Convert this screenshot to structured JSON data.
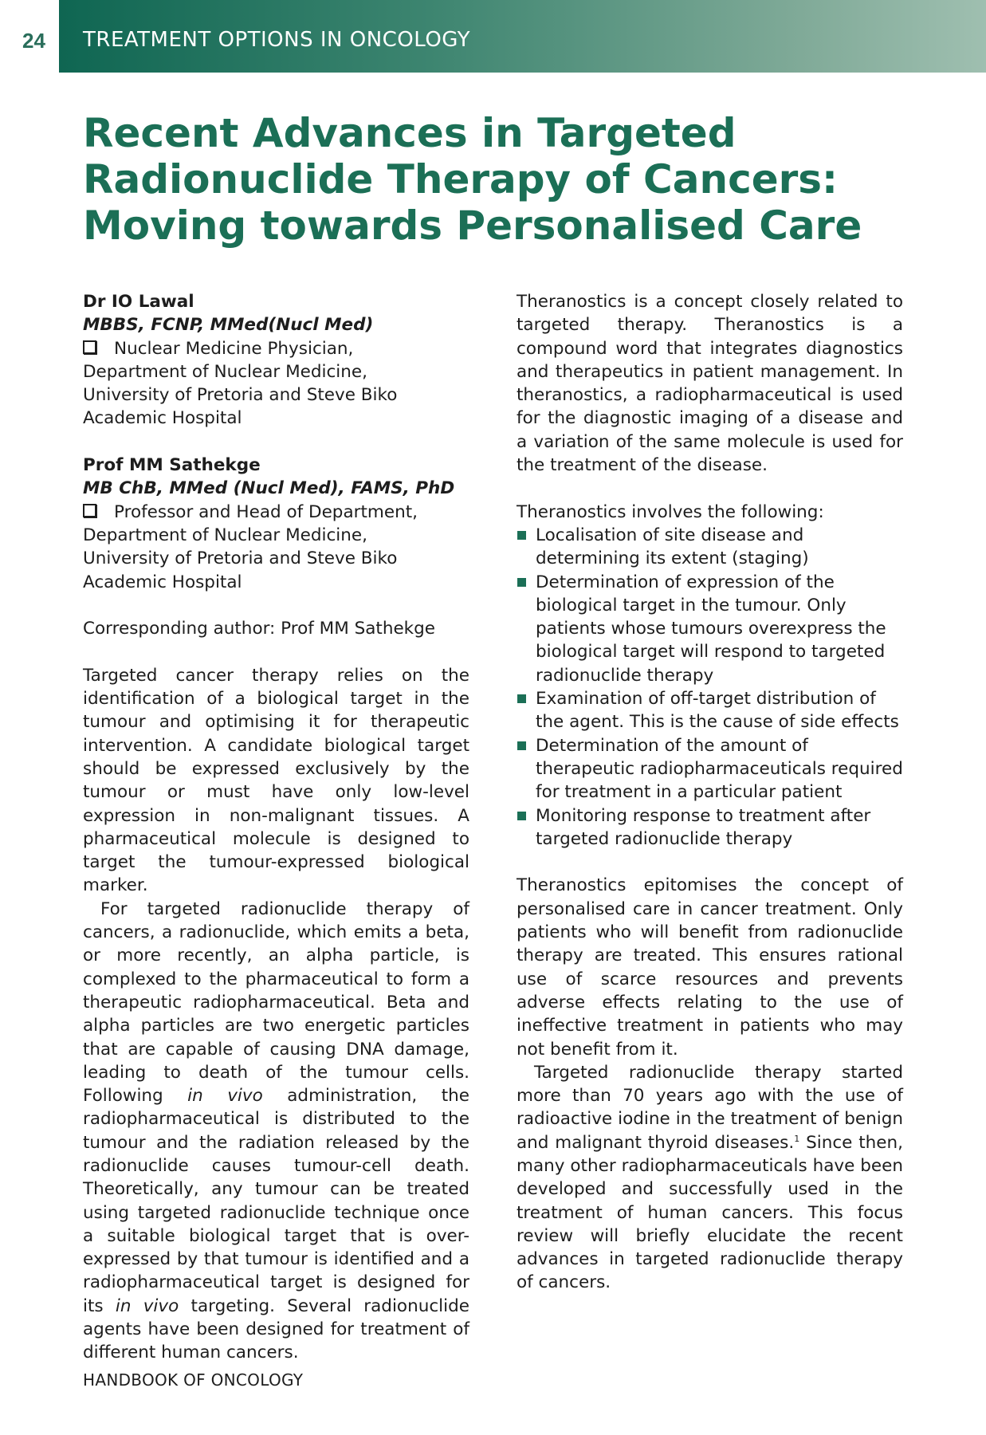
{
  "header": {
    "page_number": "24",
    "section_title": "TREATMENT OPTIONS IN ONCOLOGY"
  },
  "article": {
    "title_lines": [
      "Recent Advances in Targeted",
      "Radionuclide Therapy of Cancers:",
      "Moving towards Personalised Care"
    ]
  },
  "authors": [
    {
      "name": "Dr IO Lawal",
      "qualifications": "MBBS, FCNP, MMed(Nucl Med)",
      "affiliation_lines": [
        "Nuclear Medicine Physician,",
        "Department of Nuclear Medicine,",
        "University of Pretoria and Steve Biko",
        "Academic Hospital"
      ]
    },
    {
      "name": "Prof MM Sathekge",
      "qualifications": "MB ChB, MMed (Nucl Med), FAMS, PhD",
      "affiliation_lines": [
        "Professor and Head of Department,",
        "Department of Nuclear Medicine,",
        "University of Pretoria and Steve Biko",
        "Academic Hospital"
      ]
    }
  ],
  "corresponding_author": "Corresponding author: Prof MM Sathekge",
  "left_column": {
    "para1": "Targeted cancer therapy relies on the identification of a biological target in the tumour and optimising it for therapeutic intervention. A candidate biological target should be expressed exclusively by the tumour or must have only low-level expression in non-malignant tissues. A pharmaceutical molecule is designed to target the tumour-expressed biological marker.",
    "para2_a": "For targeted radionuclide therapy of cancers, a radionuclide, which emits a beta, or more recently, an alpha particle, is complexed to the pharmaceutical to form a therapeutic radiopharmaceutical. Beta and alpha particles are two energetic particles that are capable of causing DNA damage, leading to death of the tumour cells. Following ",
    "para2_em1": "in vivo",
    "para2_b": " administration, the radiopharmaceutical is distributed to the tumour and the radiation released by the radionuclide causes tumour-cell death. Theoretically, any tumour can be treated using targeted radionuclide technique once a suitable biological target that is over-expressed by that tumour is identified and a radiopharmaceutical target is designed for its ",
    "para2_em2": "in vivo",
    "para2_c": " targeting. Several radionuclide agents have been designed for treatment of different human cancers."
  },
  "right_column": {
    "para1": "Theranostics is a concept closely related to targeted therapy. Theranostics is a compound word that integrates diagnostics and therapeutics in patient management. In theranostics, a radiopharmaceutical is used for the diagnostic imaging of a disease and a variation of the same molecule is used for the treatment of the disease.",
    "list_intro": "Theranostics involves the following:",
    "list_items": [
      "Localisation of site disease and determining its extent (staging)",
      "Determination of expression of the biological target in the tumour. Only patients whose tumours overexpress the biological target will respond to targeted radionuclide therapy",
      "Examination of off-target distribution of the agent. This is the cause of side effects",
      "Determination of the amount of therapeutic radiopharmaceuticals required for treatment in a particular patient",
      "Monitoring response to treatment after targeted radionuclide therapy"
    ],
    "para2": "Theranostics epitomises the concept of personalised care in cancer treatment. Only patients who will benefit from radionuclide therapy are treated. This ensures rational use of scarce resources and prevents adverse effects relating to the use of ineffective treatment in patients who may not benefit from it.",
    "para3_a": "Targeted radionuclide therapy started more than 70 years ago with the use of radioactive iodine in the treatment of benign and malignant thyroid diseases.",
    "para3_sup": "1",
    "para3_b": " Since then, many other radiopharmaceuticals have been developed and successfully used in the treatment of human cancers. This focus review will briefly elucidate the recent advances in targeted radionuclide therapy of cancers."
  },
  "footer": {
    "text": "HANDBOOK OF ONCOLOGY"
  },
  "colors": {
    "accent": "#1b6f56",
    "header_gradient_start": "#0f6652",
    "header_gradient_end": "#9fbfb0"
  },
  "icons": {
    "affiliation_marker": "checkbox-icon",
    "list_bullet": "square-bullet-icon"
  }
}
